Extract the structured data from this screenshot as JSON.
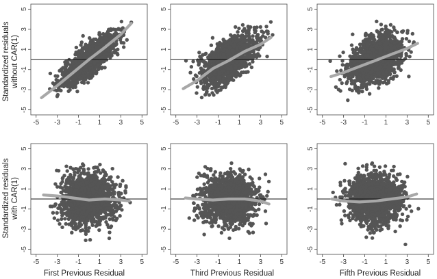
{
  "figure": {
    "ylabel_row_top": [
      "Standardized residuals",
      "without CAR(1)"
    ],
    "ylabel_row_bottom": [
      "Standardized residuals",
      "with CAR(1)"
    ],
    "xlabel_col_1": "First Previous Residual",
    "xlabel_col_2": "Third Previous Residual",
    "xlabel_col_3": "Fifth Previous Residual"
  },
  "colors": {
    "points": "#555555",
    "smoother": "#a8a8a8",
    "reference_line": "#111111",
    "frame": "#444444"
  },
  "chart_data": [
    {
      "type": "scatter",
      "xlim": [
        -5.5,
        5.5
      ],
      "ylim": [
        -5.5,
        5.5
      ],
      "xticks": [
        -5,
        -3,
        -1,
        1,
        3,
        5
      ],
      "yticks": [
        -5,
        -3,
        -1,
        1,
        3,
        5
      ],
      "reference_line_y": 0,
      "cloud": {
        "rho": 0.8,
        "x_range": [
          -4.6,
          4.1
        ],
        "y_range": [
          -4.5,
          4.6
        ]
      },
      "smoother": {
        "x": [
          -4.5,
          -3,
          -1.5,
          0,
          1.5,
          3,
          4
        ],
        "y": [
          -3.8,
          -2.6,
          -1.3,
          0,
          1.2,
          2.5,
          3.6
        ]
      }
    },
    {
      "type": "scatter",
      "xlim": [
        -5.5,
        5.5
      ],
      "ylim": [
        -5.5,
        5.5
      ],
      "xticks": [
        -5,
        -3,
        -1,
        1,
        3,
        5
      ],
      "yticks": [
        -5,
        -3,
        -1,
        1,
        3,
        5
      ],
      "reference_line_y": 0,
      "cloud": {
        "rho": 0.6,
        "x_range": [
          -4.4,
          4.5
        ],
        "y_range": [
          -4.5,
          4.4
        ]
      },
      "smoother": {
        "x": [
          -4.3,
          -3,
          -1.5,
          0,
          1.5,
          3,
          4
        ],
        "y": [
          -2.9,
          -2.1,
          -0.9,
          -0.1,
          0.8,
          1.5,
          2.2
        ]
      }
    },
    {
      "type": "scatter",
      "xlim": [
        -5.5,
        5.5
      ],
      "ylim": [
        -5.5,
        5.5
      ],
      "xticks": [
        -5,
        -3,
        -1,
        1,
        3,
        5
      ],
      "yticks": [
        -5,
        -3,
        -1,
        1,
        3,
        5
      ],
      "reference_line_y": 0,
      "cloud": {
        "rho": 0.4,
        "x_range": [
          -4.3,
          4.6
        ],
        "y_range": [
          -4.1,
          4.5
        ]
      },
      "smoother": {
        "x": [
          -4.2,
          -3,
          -1.5,
          0,
          1.5,
          3,
          4
        ],
        "y": [
          -1.7,
          -1.3,
          -0.7,
          -0.1,
          0.5,
          1.1,
          1.6
        ]
      }
    },
    {
      "type": "scatter",
      "xlim": [
        -5.5,
        5.5
      ],
      "ylim": [
        -5.5,
        5.5
      ],
      "xticks": [
        -5,
        -3,
        -1,
        1,
        3,
        5
      ],
      "yticks": [
        -5,
        -3,
        -1,
        1,
        3,
        5
      ],
      "reference_line_y": 0,
      "cloud": {
        "rho": 0.0,
        "x_range": [
          -4.3,
          3.9
        ],
        "y_range": [
          -4.7,
          3.6
        ]
      },
      "smoother": {
        "x": [
          -4.3,
          -3,
          -1.5,
          0,
          1.5,
          3,
          3.8
        ],
        "y": [
          0.4,
          0.3,
          0.1,
          -0.1,
          0.0,
          -0.1,
          -0.2
        ]
      }
    },
    {
      "type": "scatter",
      "xlim": [
        -5.5,
        5.5
      ],
      "ylim": [
        -5.5,
        5.5
      ],
      "xticks": [
        -5,
        -3,
        -1,
        1,
        3,
        5
      ],
      "yticks": [
        -5,
        -3,
        -1,
        1,
        3,
        5
      ],
      "reference_line_y": 0,
      "cloud": {
        "rho": 0.0,
        "x_range": [
          -4.2,
          3.9
        ],
        "y_range": [
          -4.8,
          3.6
        ]
      },
      "smoother": {
        "x": [
          -4.1,
          -3,
          -1.5,
          0,
          1.5,
          3,
          3.8
        ],
        "y": [
          0.1,
          0.0,
          -0.1,
          0.0,
          0.0,
          -0.2,
          -0.5
        ]
      }
    },
    {
      "type": "scatter",
      "xlim": [
        -5.5,
        5.5
      ],
      "ylim": [
        -5.5,
        5.5
      ],
      "xticks": [
        -5,
        -3,
        -1,
        1,
        3,
        5
      ],
      "yticks": [
        -5,
        -3,
        -1,
        1,
        3,
        5
      ],
      "reference_line_y": 0,
      "cloud": {
        "rho": 0.0,
        "x_range": [
          -4.2,
          4.1
        ],
        "y_range": [
          -4.7,
          3.6
        ]
      },
      "smoother": {
        "x": [
          -4.1,
          -3,
          -1.5,
          0,
          1.5,
          3,
          3.9
        ],
        "y": [
          0.0,
          -0.2,
          -0.3,
          -0.2,
          0.0,
          0.2,
          0.5
        ]
      }
    }
  ]
}
